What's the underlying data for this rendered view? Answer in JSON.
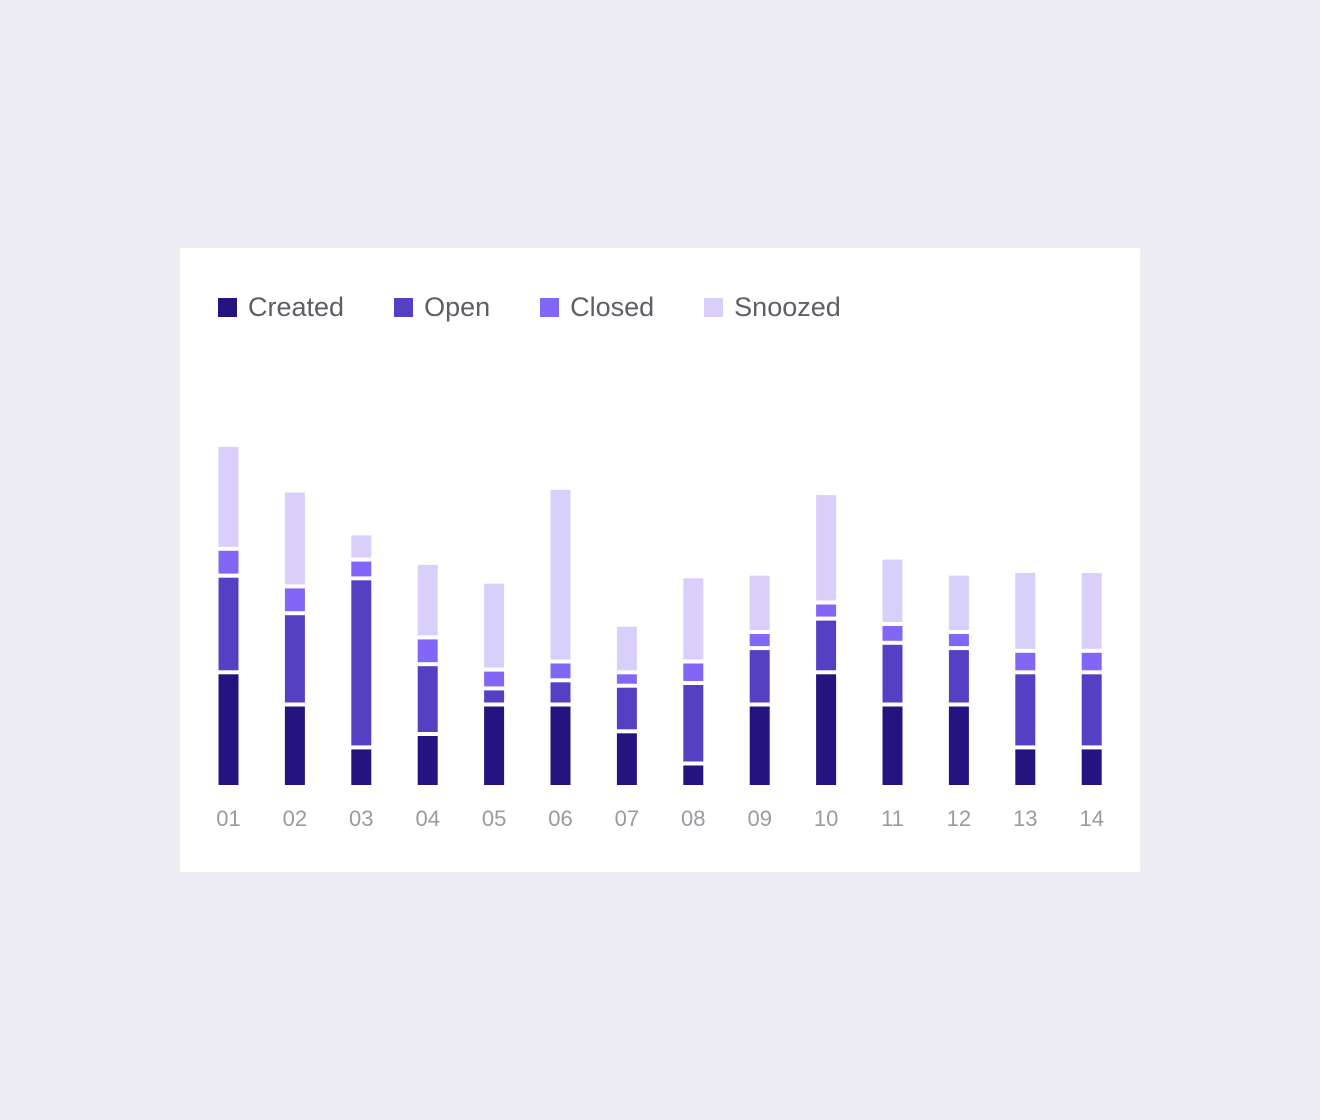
{
  "colors": {
    "created": "#25137F",
    "open": "#5540C4",
    "closed": "#8266F5",
    "snoozed": "#D8D0FB"
  },
  "chart_data": {
    "type": "bar",
    "stacked": true,
    "categories": [
      "01",
      "02",
      "03",
      "04",
      "05",
      "06",
      "07",
      "08",
      "09",
      "10",
      "11",
      "12",
      "13",
      "14"
    ],
    "series": [
      {
        "name": "Created",
        "color": "#25137F",
        "values": [
          21,
          15,
          7,
          9.5,
          15,
          15,
          10,
          4,
          15,
          21,
          15,
          15,
          7,
          7
        ]
      },
      {
        "name": "Open",
        "color": "#5540C4",
        "values": [
          18,
          17,
          31.5,
          13,
          3,
          4.5,
          8.5,
          15,
          10.5,
          10,
          11.5,
          10.5,
          14,
          14
        ]
      },
      {
        "name": "Closed",
        "color": "#8266F5",
        "values": [
          5,
          5,
          3.5,
          5,
          3.5,
          3.5,
          2.5,
          4,
          3,
          3,
          3.5,
          3,
          4,
          4
        ]
      },
      {
        "name": "Snoozed",
        "color": "#D8D0FB",
        "values": [
          19,
          17.5,
          4.5,
          13.5,
          16,
          32,
          8.5,
          15.5,
          10.5,
          20,
          12,
          10.5,
          14.5,
          14.5
        ]
      }
    ],
    "ylim": [
      0,
      68
    ],
    "grid": false,
    "legend_position": "top-left"
  }
}
